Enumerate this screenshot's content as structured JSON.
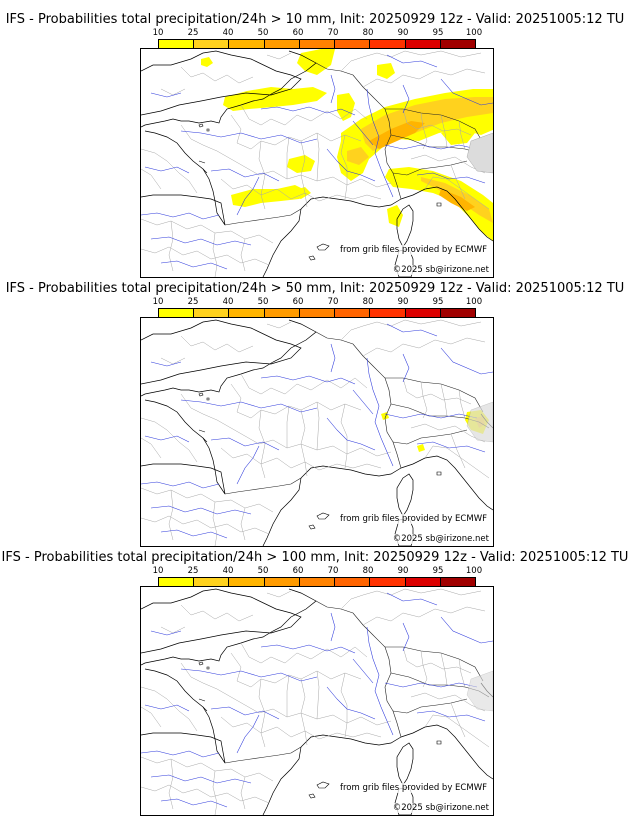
{
  "colorbar": {
    "ticks": [
      "10",
      "25",
      "40",
      "50",
      "60",
      "70",
      "80",
      "90",
      "95",
      "100"
    ],
    "colors": [
      "#ffff00",
      "#ffd21e",
      "#ffb400",
      "#ff9b00",
      "#ff8200",
      "#ff6400",
      "#ff3200",
      "#dc0000",
      "#a00000",
      "#640000"
    ]
  },
  "panels": [
    {
      "title": "IFS - Probabilities total precipitation/24h > 10 mm, Init: 20250929 12z - Valid: 20251005:12 TU",
      "credit_source": "from grib files provided by ECMWF",
      "credit_copyright": "©2025 sb@irizone.net"
    },
    {
      "title": "IFS - Probabilities total precipitation/24h > 50 mm, Init: 20250929 12z - Valid: 20251005:12 TU",
      "credit_source": "from grib files provided by ECMWF",
      "credit_copyright": "©2025 sb@irizone.net"
    },
    {
      "title": "IFS - Probabilities total precipitation/24h > 100 mm, Init: 20250929 12z - Valid: 20251005:12 TU",
      "credit_source": "from grib files provided by ECMWF",
      "credit_copyright": "©2025 sb@irizone.net"
    }
  ]
}
